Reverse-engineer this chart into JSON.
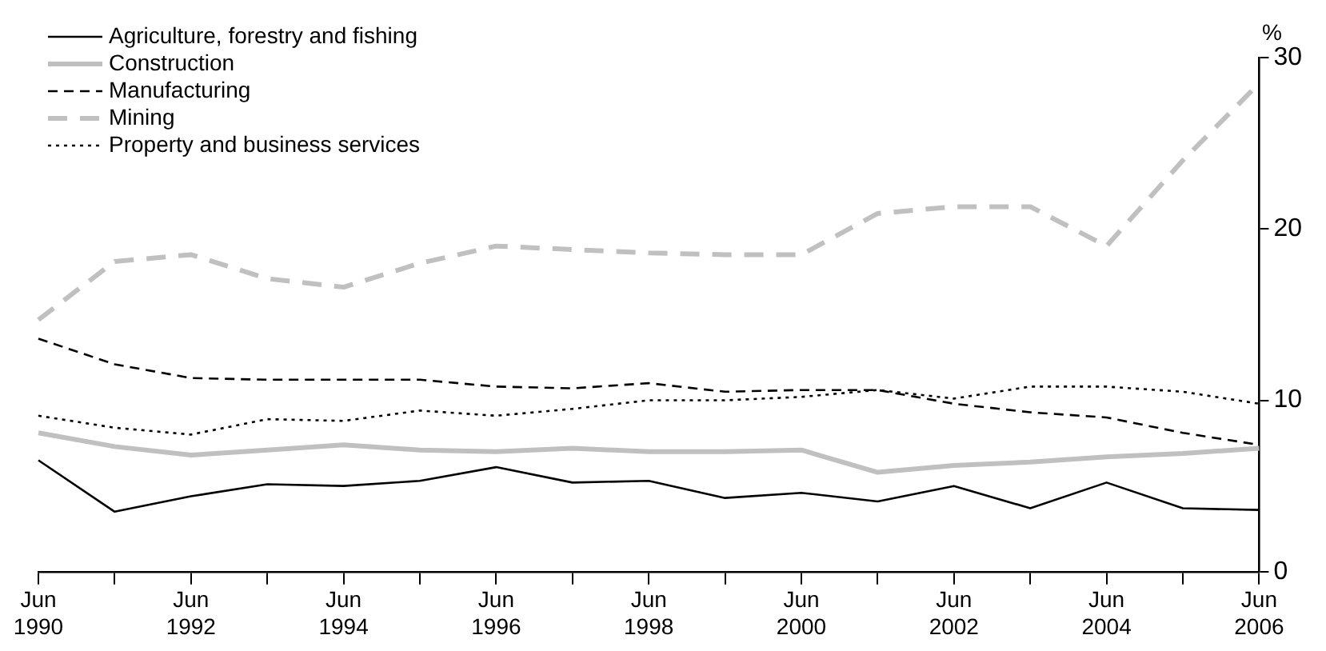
{
  "chart_data": {
    "type": "line",
    "ylabel": "%",
    "categories": [
      "Jun 1990",
      null,
      "Jun 1992",
      null,
      "Jun 1994",
      null,
      "Jun 1996",
      null,
      "Jun 1998",
      null,
      "Jun 2000",
      null,
      "Jun 2002",
      null,
      "Jun 2004",
      null,
      "Jun 2006"
    ],
    "ylim": [
      0,
      30
    ],
    "yticks": [
      0,
      10,
      20,
      30
    ],
    "grid": false,
    "legend": "top left",
    "marker": "none",
    "series": [
      {
        "name": "Agriculture, forestry and fishing",
        "color": "#000000",
        "line_style": "solid",
        "values": [
          6.5,
          3.5,
          4.4,
          5.1,
          5.0,
          5.3,
          6.1,
          5.2,
          5.3,
          4.3,
          4.6,
          4.1,
          5.0,
          3.7,
          5.2,
          3.7,
          3.6
        ]
      },
      {
        "name": "Construction",
        "color": "#c0c0c0",
        "line_style": "solid",
        "values": [
          8.1,
          7.3,
          6.8,
          7.1,
          7.4,
          7.1,
          7.0,
          7.2,
          7.0,
          7.0,
          7.1,
          5.8,
          6.2,
          6.4,
          6.7,
          6.9,
          7.2
        ]
      },
      {
        "name": "Manufacturing",
        "color": "#000000",
        "line_style": "dashed",
        "values": [
          13.6,
          12.1,
          11.3,
          11.2,
          11.2,
          11.2,
          10.8,
          10.7,
          11.0,
          10.5,
          10.6,
          10.6,
          9.8,
          9.3,
          9.0,
          8.1,
          7.4
        ]
      },
      {
        "name": "Mining",
        "color": "#c0c0c0",
        "line_style": "dashed",
        "values": [
          14.7,
          18.1,
          18.5,
          17.1,
          16.6,
          18.0,
          19.0,
          18.8,
          18.6,
          18.5,
          18.5,
          20.9,
          21.3,
          21.3,
          19.0,
          24.0,
          28.5
        ]
      },
      {
        "name": "Property and business services",
        "color": "#000000",
        "line_style": "dotted",
        "values": [
          9.1,
          8.4,
          8.0,
          8.9,
          8.8,
          9.4,
          9.1,
          9.5,
          10.0,
          10.0,
          10.2,
          10.6,
          10.1,
          10.8,
          10.8,
          10.5,
          9.8
        ]
      }
    ]
  }
}
